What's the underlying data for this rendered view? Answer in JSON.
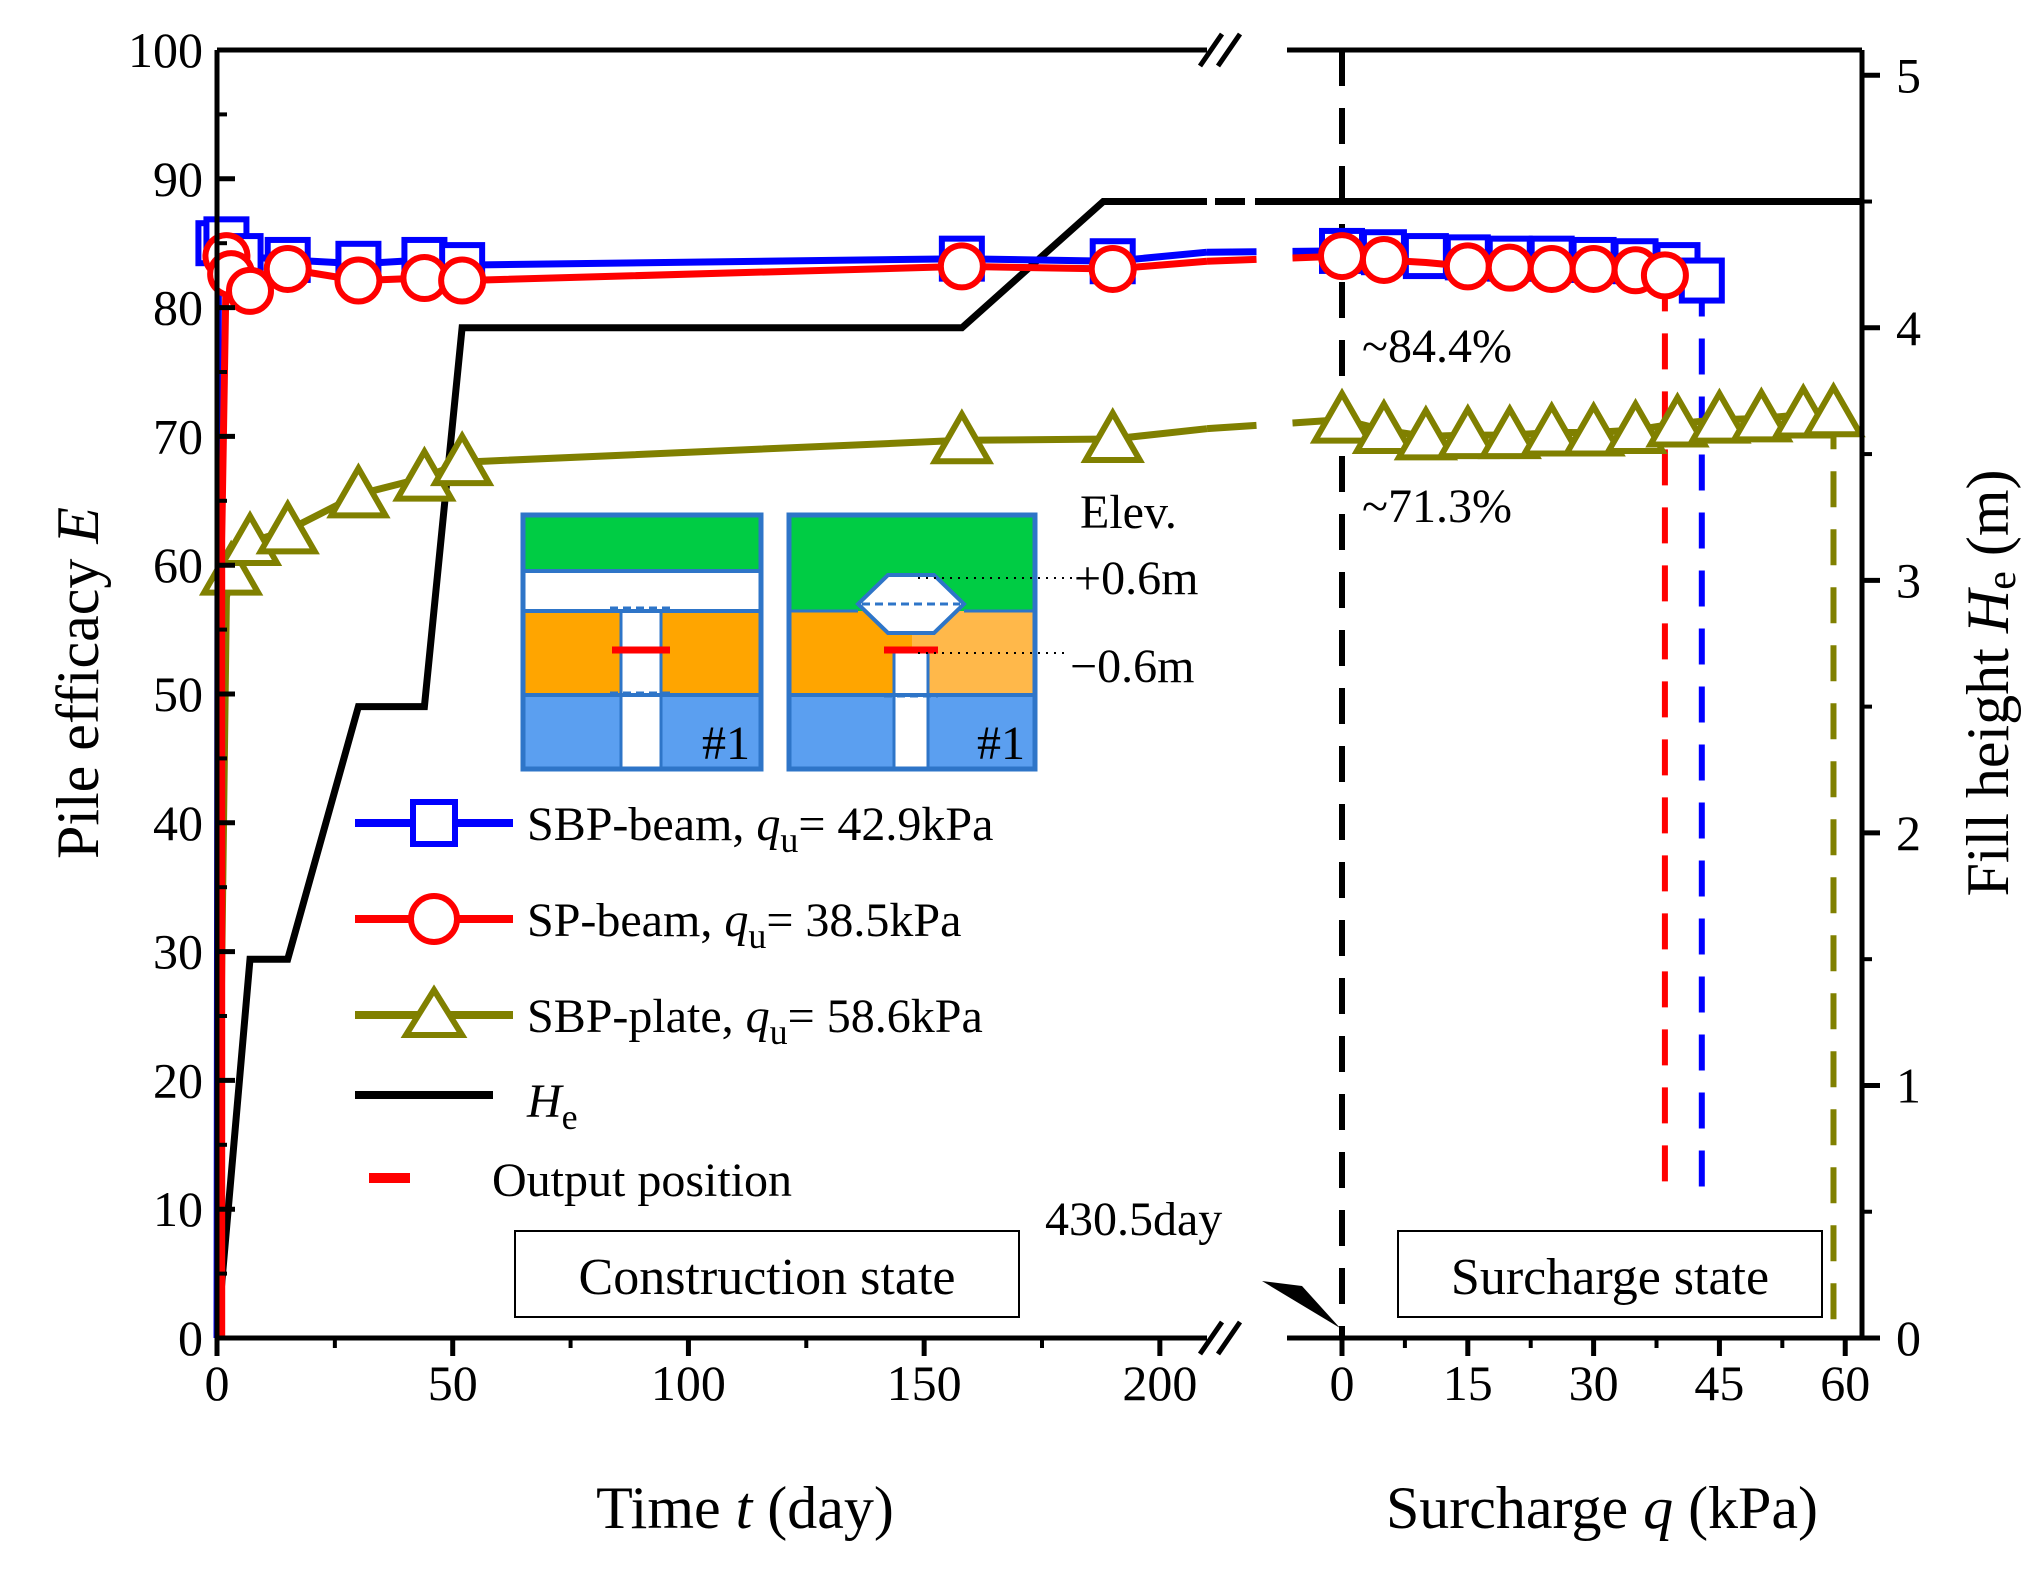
{
  "chart_data": {
    "type": "line",
    "left_panel": {
      "xlabel_pre": "Time ",
      "xlabel_var": "t",
      "xlabel_post": " (day)",
      "xlim": [
        0,
        210
      ],
      "xticks": [
        "0",
        "50",
        "100",
        "150",
        "200"
      ],
      "xtick_values": [
        0,
        50,
        100,
        150,
        200
      ]
    },
    "right_panel": {
      "xlabel_pre": "Surcharge ",
      "xlabel_var": "q",
      "xlabel_post": " (kPa)",
      "xlim": [
        0,
        62
      ],
      "xticks": [
        "0",
        "15",
        "30",
        "45",
        "60"
      ],
      "xtick_values": [
        0,
        15,
        30,
        45,
        60
      ]
    },
    "y_left": {
      "label_pre": "Pile efficacy ",
      "label_var": "E",
      "ylim": [
        0,
        100
      ],
      "ticks": [
        "0",
        "10",
        "20",
        "30",
        "40",
        "50",
        "60",
        "70",
        "80",
        "90",
        "100"
      ]
    },
    "y_right": {
      "label_pre": "Fill height ",
      "label_var": "H",
      "label_sub": "e",
      "label_post": " (m)",
      "ylim": [
        0,
        5.1
      ],
      "ticks": [
        "0",
        "1",
        "2",
        "3",
        "4",
        "5"
      ]
    },
    "series": [
      {
        "name": "SBP-beam",
        "legend_pre": "SBP-beam, ",
        "legend_var": "q",
        "legend_sub": "u",
        "legend_post": "= 42.9kPa",
        "color": "#0000ff",
        "marker": "square",
        "time": [
          [
            0,
            0
          ],
          [
            0.3,
            85
          ],
          [
            2,
            85.3
          ],
          [
            5,
            84
          ],
          [
            15,
            83.7
          ],
          [
            30,
            83.4
          ],
          [
            44,
            83.7
          ],
          [
            52,
            83.3
          ],
          [
            158,
            83.8
          ],
          [
            190,
            83.6
          ],
          [
            210,
            84.3
          ]
        ],
        "time_markers": [
          0.3,
          2,
          5,
          15,
          30,
          44,
          52,
          158,
          190
        ],
        "surcharge": [
          [
            0,
            84.4
          ],
          [
            5,
            84.3
          ],
          [
            10,
            84.0
          ],
          [
            15,
            83.9
          ],
          [
            20,
            83.8
          ],
          [
            25,
            83.8
          ],
          [
            30,
            83.7
          ],
          [
            35,
            83.6
          ],
          [
            40,
            83.3
          ],
          [
            42.9,
            82.1
          ]
        ],
        "surcharge_markers": [
          0,
          5,
          10,
          15,
          20,
          25,
          30,
          35,
          40,
          42.9
        ]
      },
      {
        "name": "SP-beam",
        "legend_pre": "SP-beam, ",
        "legend_var": "q",
        "legend_sub": "u",
        "legend_post": "= 38.5kPa",
        "color": "#ff0000",
        "marker": "circle",
        "time": [
          [
            1,
            0
          ],
          [
            1,
            62
          ],
          [
            2,
            84
          ],
          [
            3,
            82.6
          ],
          [
            7,
            81.3
          ],
          [
            15,
            83.0
          ],
          [
            30,
            82.1
          ],
          [
            44,
            82.3
          ],
          [
            52,
            82.1
          ],
          [
            158,
            83.2
          ],
          [
            190,
            83.0
          ],
          [
            210,
            83.6
          ]
        ],
        "time_markers": [
          2,
          3,
          7,
          15,
          30,
          44,
          52,
          158,
          190
        ],
        "surcharge": [
          [
            0,
            84.0
          ],
          [
            5,
            83.7
          ],
          [
            10,
            83.5
          ],
          [
            15,
            83.2
          ],
          [
            20,
            83.1
          ],
          [
            25,
            83.0
          ],
          [
            30,
            83.0
          ],
          [
            35,
            82.9
          ],
          [
            38.5,
            82.5
          ]
        ],
        "surcharge_markers": [
          0,
          5,
          15,
          20,
          25,
          30,
          35,
          38.5
        ]
      },
      {
        "name": "SBP-plate",
        "legend_pre": "SBP-plate, ",
        "legend_var": "q",
        "legend_sub": "u",
        "legend_post": "= 58.6kPa",
        "color": "#808000",
        "marker": "triangle",
        "time": [
          [
            0,
            0
          ],
          [
            2,
            57.5
          ],
          [
            3,
            59.5
          ],
          [
            7,
            61.8
          ],
          [
            15,
            62.7
          ],
          [
            30,
            65.5
          ],
          [
            44,
            66.8
          ],
          [
            52,
            68.0
          ],
          [
            158,
            69.7
          ],
          [
            190,
            69.8
          ],
          [
            210,
            70.6
          ]
        ],
        "time_markers": [
          3,
          7,
          15,
          30,
          44,
          52,
          158,
          190
        ],
        "surcharge": [
          [
            0,
            71.3
          ],
          [
            5,
            70.5
          ],
          [
            10,
            70.0
          ],
          [
            15,
            70.1
          ],
          [
            20,
            70.1
          ],
          [
            25,
            70.3
          ],
          [
            30,
            70.3
          ],
          [
            35,
            70.5
          ],
          [
            40,
            71.0
          ],
          [
            45,
            71.3
          ],
          [
            50,
            71.4
          ],
          [
            55,
            71.7
          ],
          [
            58.6,
            71.8
          ]
        ],
        "surcharge_markers": [
          0,
          5,
          10,
          15,
          20,
          25,
          30,
          35,
          40,
          45,
          50,
          55,
          58.6
        ]
      },
      {
        "name": "He",
        "legend_var": "H",
        "legend_sub": "e",
        "color": "#000000",
        "marker": "none",
        "time_m": [
          [
            0,
            0
          ],
          [
            7,
            1.5
          ],
          [
            15,
            1.5
          ],
          [
            30,
            2.5
          ],
          [
            44,
            2.5
          ],
          [
            52,
            4.0
          ],
          [
            158,
            4.0
          ],
          [
            188,
            4.5
          ],
          [
            210,
            4.5
          ]
        ],
        "surcharge_m": [
          [
            0,
            4.5
          ],
          [
            62,
            4.5
          ]
        ]
      }
    ],
    "output_position": {
      "label": "Output position",
      "color": "#ff0000",
      "lines": [
        {
          "q": 38.5,
          "from": 82.5,
          "to": 11.2,
          "color": "#ff0000"
        },
        {
          "q": 42.9,
          "from": 82.1,
          "to": 11.2,
          "color": "#0000ff"
        },
        {
          "q": 58.6,
          "from": 71.8,
          "to": 0,
          "color": "#808000"
        }
      ]
    },
    "annotations": {
      "beam_value": "~84.4%",
      "plate_value": "~71.3%",
      "day_marker": "430.5day",
      "construction_box": "Construction state",
      "surcharge_box": "Surcharge state",
      "elev_title": "Elev.",
      "elev_upper": "+0.6m",
      "elev_lower": "−0.6m",
      "inset_tag_left": "#1",
      "inset_tag_right": "#1"
    },
    "axis_break_symbol": "//"
  },
  "colors": {
    "fill_green": "#00cc44",
    "soil_orange": "#ffa500",
    "soil_orange_light": "#ffb84a",
    "clay_blue": "#5b9ff0",
    "inset_border": "#2e75c8"
  }
}
